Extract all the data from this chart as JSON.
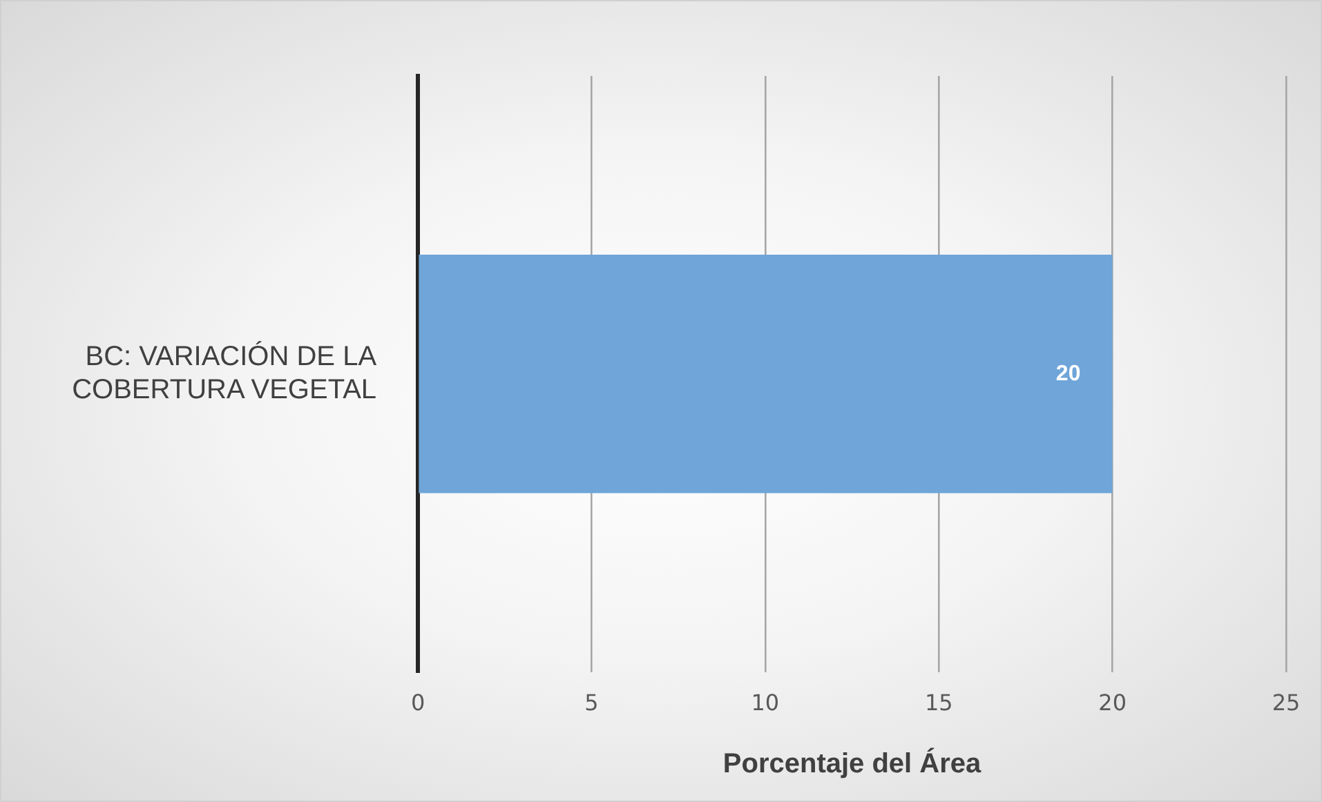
{
  "chart_data": {
    "type": "bar",
    "orientation": "horizontal",
    "categories": [
      "BC: VARIACIÓN DE LA COBERTURA VEGETAL"
    ],
    "values": [
      20
    ],
    "color": "#6fa5d8",
    "xlabel": "Porcentaje del Área",
    "xlim": [
      0,
      25
    ],
    "xticks": [
      0,
      5,
      10,
      15,
      20,
      25
    ],
    "grid": "x",
    "data_labels": true,
    "legend": false
  }
}
